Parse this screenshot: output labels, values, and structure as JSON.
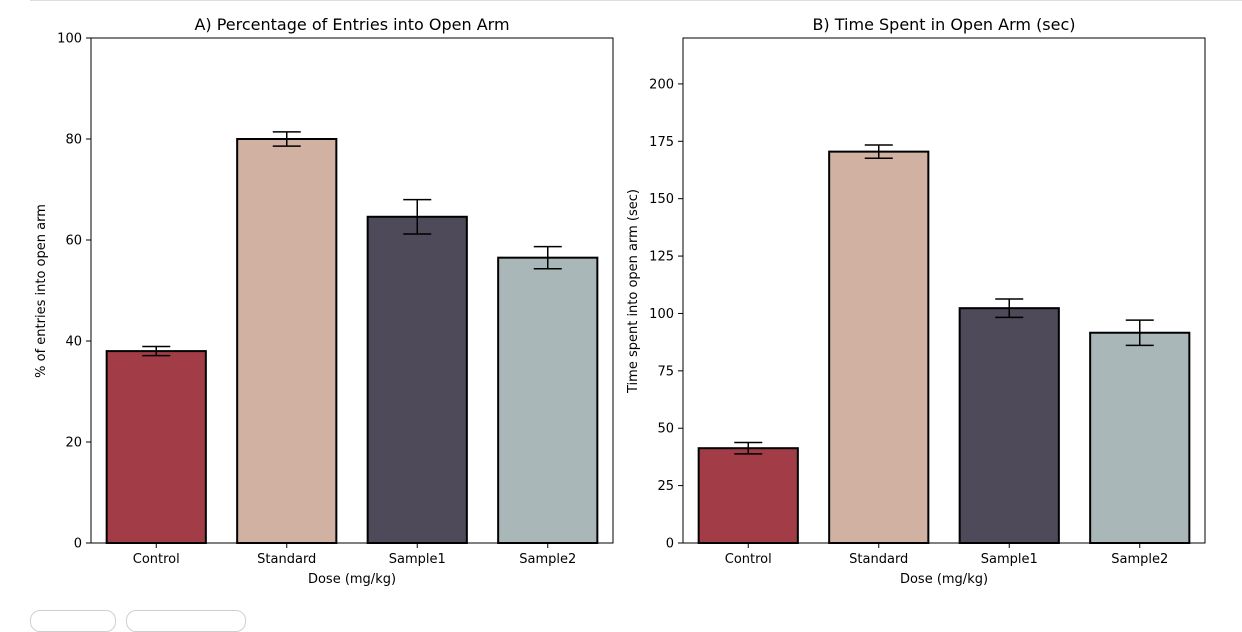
{
  "chart_data": [
    {
      "type": "bar",
      "title": "A) Percentage of Entries into Open Arm",
      "xlabel": "Dose (mg/kg)",
      "ylabel": "% of entries into open arm",
      "categories": [
        "Control",
        "Standard",
        "Sample1",
        "Sample2"
      ],
      "values": [
        38,
        80,
        64.6,
        56.5
      ],
      "errors": [
        0.9,
        1.4,
        3.4,
        2.2
      ],
      "ylim": [
        0,
        100
      ],
      "yticks": [
        0,
        20,
        40,
        60,
        80,
        100
      ],
      "colors": [
        "#a23d48",
        "#d1b1a2",
        "#4e4a59",
        "#a9b7b8"
      ],
      "grid": false
    },
    {
      "type": "bar",
      "title": "B) Time Spent in Open Arm (sec)",
      "xlabel": "Dose (mg/kg)",
      "ylabel": "Time spent into open arm (sec)",
      "categories": [
        "Control",
        "Standard",
        "Sample1",
        "Sample2"
      ],
      "values": [
        41.3,
        170.5,
        102.3,
        91.6
      ],
      "errors": [
        2.5,
        2.9,
        4.0,
        5.5
      ],
      "ylim": [
        0,
        220
      ],
      "yticks": [
        0,
        25,
        50,
        75,
        100,
        125,
        150,
        175,
        200
      ],
      "colors": [
        "#a23d48",
        "#d1b1a2",
        "#4e4a59",
        "#a9b7b8"
      ],
      "grid": false
    }
  ]
}
